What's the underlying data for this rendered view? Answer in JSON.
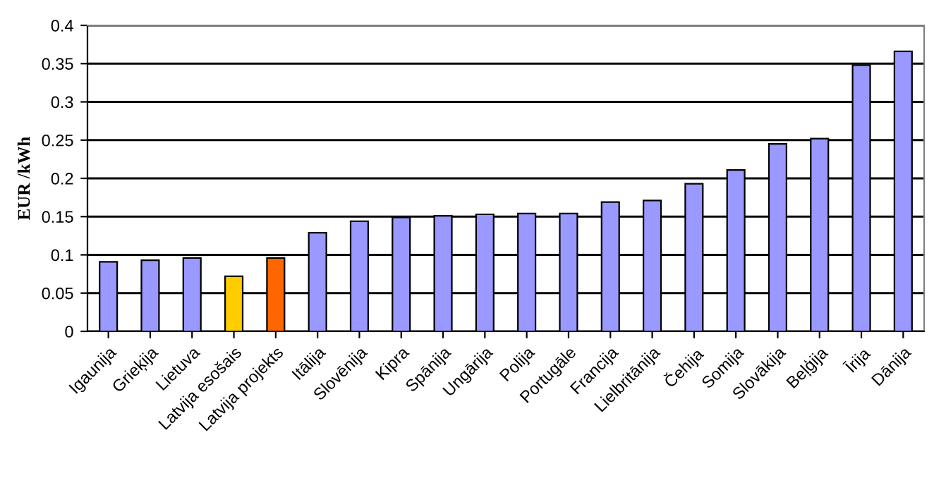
{
  "chart_data": {
    "type": "bar",
    "ylabel": "EUR /kWh",
    "categories": [
      "Igaunija",
      "Grieķija",
      "Lietuva",
      "Latvija esošais",
      "Latvija projekts",
      "Itālija",
      "Slovēnija",
      "Kipra",
      "Spānija",
      "Ungārija",
      "Polija",
      "Portugāle",
      "Francija",
      "Lielbritānija",
      "Čehija",
      "Somija",
      "Slovākija",
      "Beļģija",
      "Īrija",
      "Dānija"
    ],
    "values": [
      0.091,
      0.093,
      0.096,
      0.072,
      0.096,
      0.129,
      0.144,
      0.149,
      0.151,
      0.153,
      0.154,
      0.154,
      0.169,
      0.171,
      0.193,
      0.211,
      0.245,
      0.252,
      0.348,
      0.366
    ],
    "colors": [
      "#9999ff",
      "#9999ff",
      "#9999ff",
      "#ffcc00",
      "#ff6600",
      "#9999ff",
      "#9999ff",
      "#9999ff",
      "#9999ff",
      "#9999ff",
      "#9999ff",
      "#9999ff",
      "#9999ff",
      "#9999ff",
      "#9999ff",
      "#9999ff",
      "#9999ff",
      "#9999ff",
      "#9999ff",
      "#9999ff"
    ],
    "ylim": [
      0,
      0.4
    ],
    "yticks": [
      0,
      0.05,
      0.1,
      0.15,
      0.2,
      0.25,
      0.3,
      0.35,
      0.4
    ],
    "grid": "y",
    "legend": false
  }
}
